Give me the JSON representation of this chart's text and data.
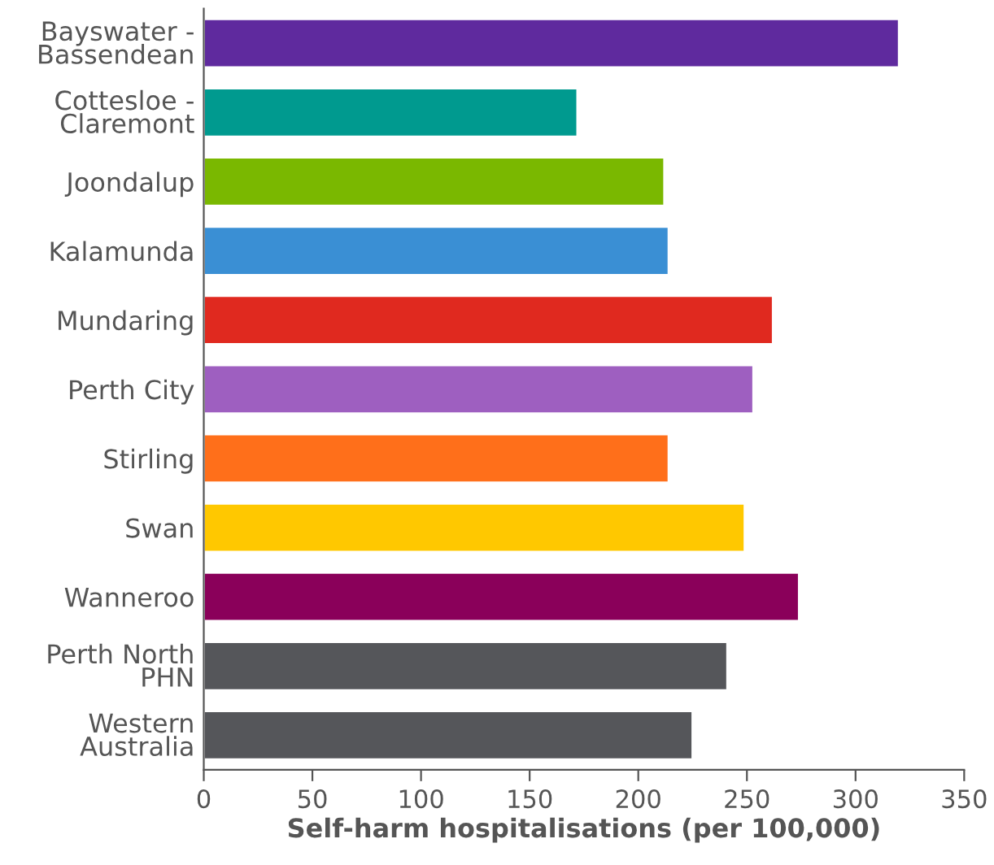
{
  "chart_data": {
    "type": "bar",
    "orientation": "horizontal",
    "xlabel": "Self-harm hospitalisations (per 100,000)",
    "categories": [
      "Bayswater -\nBassendean",
      "Cottesloe -\nClaremont",
      "Joondalup",
      "Kalamunda",
      "Mundaring",
      "Perth City",
      "Stirling",
      "Swan",
      "Wanneroo",
      "Perth North\nPHN",
      "Western\nAustralia"
    ],
    "values": [
      320,
      172,
      212,
      214,
      262,
      253,
      214,
      249,
      274,
      241,
      225
    ],
    "colors": [
      "#5f2a9e",
      "#009a8f",
      "#7ab800",
      "#3a8fd4",
      "#e0291f",
      "#9e5fc0",
      "#ff6f1a",
      "#ffc800",
      "#8a005a",
      "#55565a",
      "#55565a"
    ],
    "xlim": [
      0,
      350
    ],
    "xticks": [
      0,
      50,
      100,
      150,
      200,
      250,
      300,
      350
    ],
    "grid": false
  }
}
